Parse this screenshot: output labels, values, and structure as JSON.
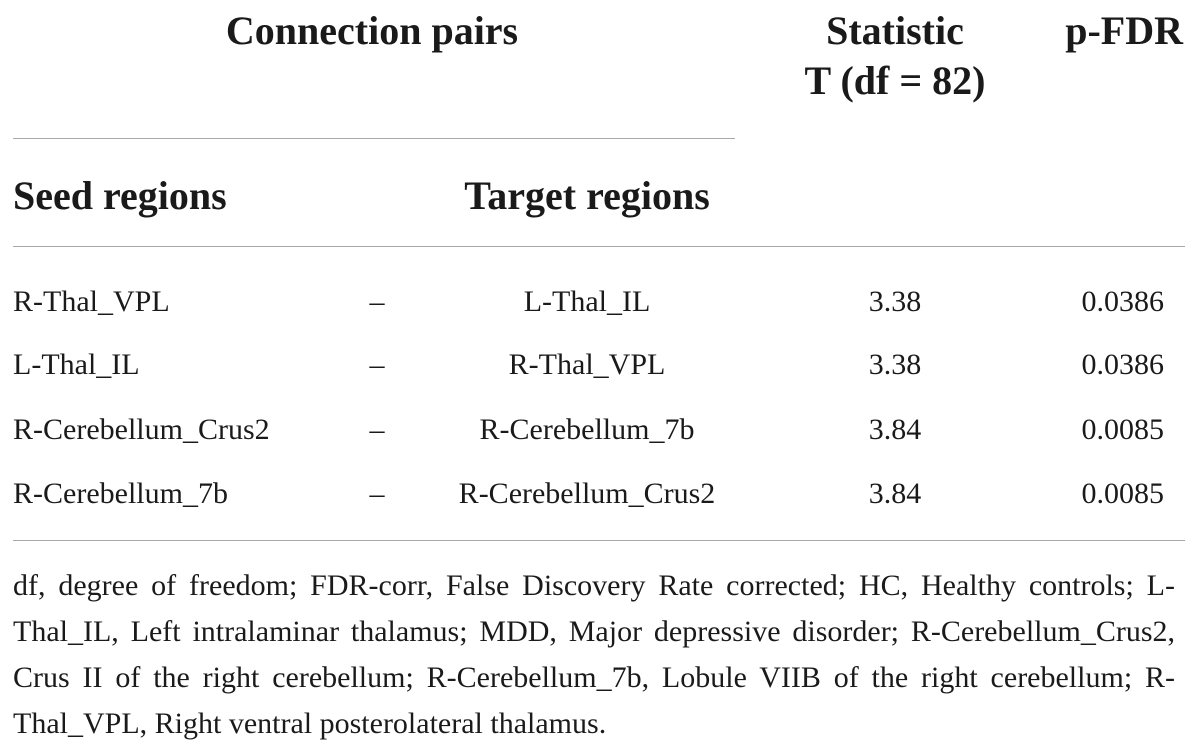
{
  "table": {
    "headers": {
      "connection_pairs": "Connection pairs",
      "statistic_line1": "Statistic",
      "statistic_line2": "T (df = 82)",
      "p_fdr": "p-FDR",
      "seed_regions": "Seed regions",
      "target_regions": "Target regions"
    },
    "rows": [
      {
        "seed": "R-Thal_VPL",
        "dash": "–",
        "target": "L-Thal_IL",
        "t": "3.38",
        "p": "0.0386"
      },
      {
        "seed": "L-Thal_IL",
        "dash": "–",
        "target": "R-Thal_VPL",
        "t": "3.38",
        "p": "0.0386"
      },
      {
        "seed": "R-Cerebellum_Crus2",
        "dash": "–",
        "target": "R-Cerebellum_7b",
        "t": "3.84",
        "p": "0.0085"
      },
      {
        "seed": "R-Cerebellum_7b",
        "dash": "–",
        "target": "R-Cerebellum_Crus2",
        "t": "3.84",
        "p": "0.0085"
      }
    ],
    "footnote": "df, degree of freedom; FDR-corr, False Discovery Rate corrected; HC, Healthy controls; L-Thal_IL, Left intralaminar thalamus; MDD, Major depressive disorder; R-Cerebellum_Crus2, Crus II of the right cerebellum; R-Cerebellum_7b, Lobule VIIB of the right cerebellum; R-Thal_VPL, Right ventral posterolateral thalamus."
  }
}
